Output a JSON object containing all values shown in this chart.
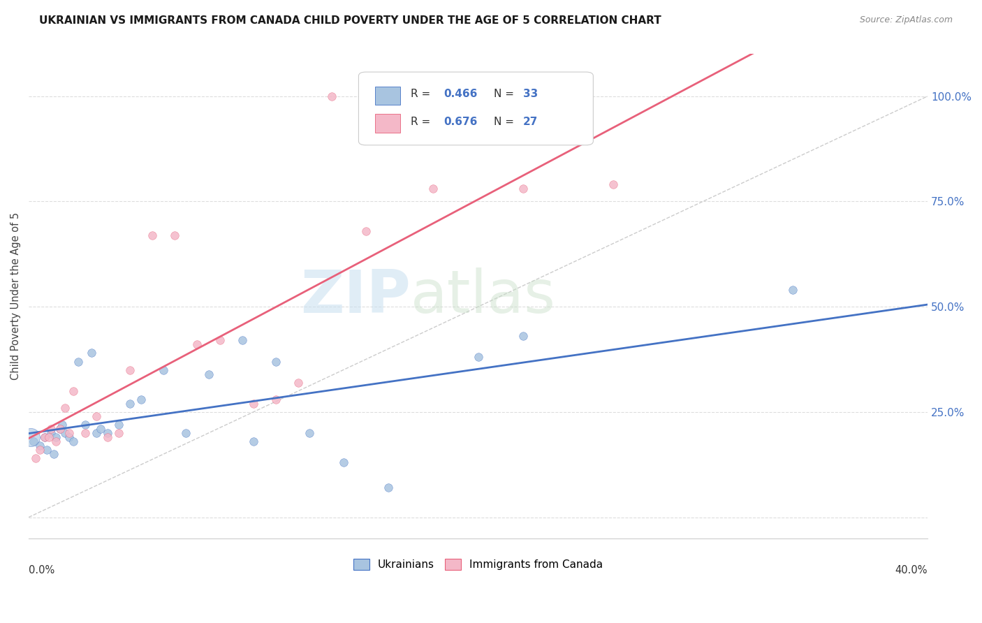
{
  "title": "UKRAINIAN VS IMMIGRANTS FROM CANADA CHILD POVERTY UNDER THE AGE OF 5 CORRELATION CHART",
  "source": "Source: ZipAtlas.com",
  "ylabel": "Child Poverty Under the Age of 5",
  "ytick_values": [
    0,
    25,
    50,
    75,
    100
  ],
  "xlim": [
    0,
    40
  ],
  "ylim": [
    -5,
    110
  ],
  "r_ukrainian": 0.466,
  "n_ukrainian": 33,
  "r_canada": 0.676,
  "n_canada": 27,
  "ukrainians_color": "#a8c4e0",
  "canada_color": "#f4b8c8",
  "trendline_ukrainian_color": "#4472c4",
  "trendline_canada_color": "#e8607a",
  "background_color": "#ffffff",
  "grid_color": "#dddddd",
  "ukrainians_x": [
    0.2,
    0.5,
    0.7,
    0.8,
    1.0,
    1.1,
    1.2,
    1.4,
    1.5,
    1.6,
    1.8,
    2.0,
    2.2,
    2.5,
    2.8,
    3.0,
    3.2,
    3.5,
    4.0,
    4.5,
    5.0,
    6.0,
    7.0,
    8.0,
    9.5,
    10.0,
    11.0,
    12.5,
    14.0,
    16.0,
    20.0,
    22.0,
    34.0
  ],
  "ukrainians_y": [
    18,
    17,
    19,
    16,
    20,
    15,
    19,
    21,
    22,
    20,
    19,
    18,
    37,
    22,
    39,
    20,
    21,
    20,
    22,
    27,
    28,
    35,
    20,
    34,
    42,
    18,
    37,
    20,
    13,
    7,
    38,
    43,
    54
  ],
  "canada_x": [
    0.3,
    0.5,
    0.7,
    0.9,
    1.0,
    1.2,
    1.4,
    1.6,
    1.8,
    2.0,
    2.5,
    3.0,
    3.5,
    4.0,
    4.5,
    5.5,
    6.5,
    7.5,
    8.5,
    10.0,
    11.0,
    12.0,
    13.5,
    15.0,
    18.0,
    22.0,
    26.0
  ],
  "canada_y": [
    14,
    16,
    19,
    19,
    21,
    18,
    21,
    26,
    20,
    30,
    20,
    24,
    19,
    20,
    35,
    67,
    67,
    41,
    42,
    27,
    28,
    32,
    100,
    68,
    78,
    78,
    79
  ],
  "large_dot_x": 0.1,
  "large_dot_y": 19,
  "large_dot_size": 350
}
